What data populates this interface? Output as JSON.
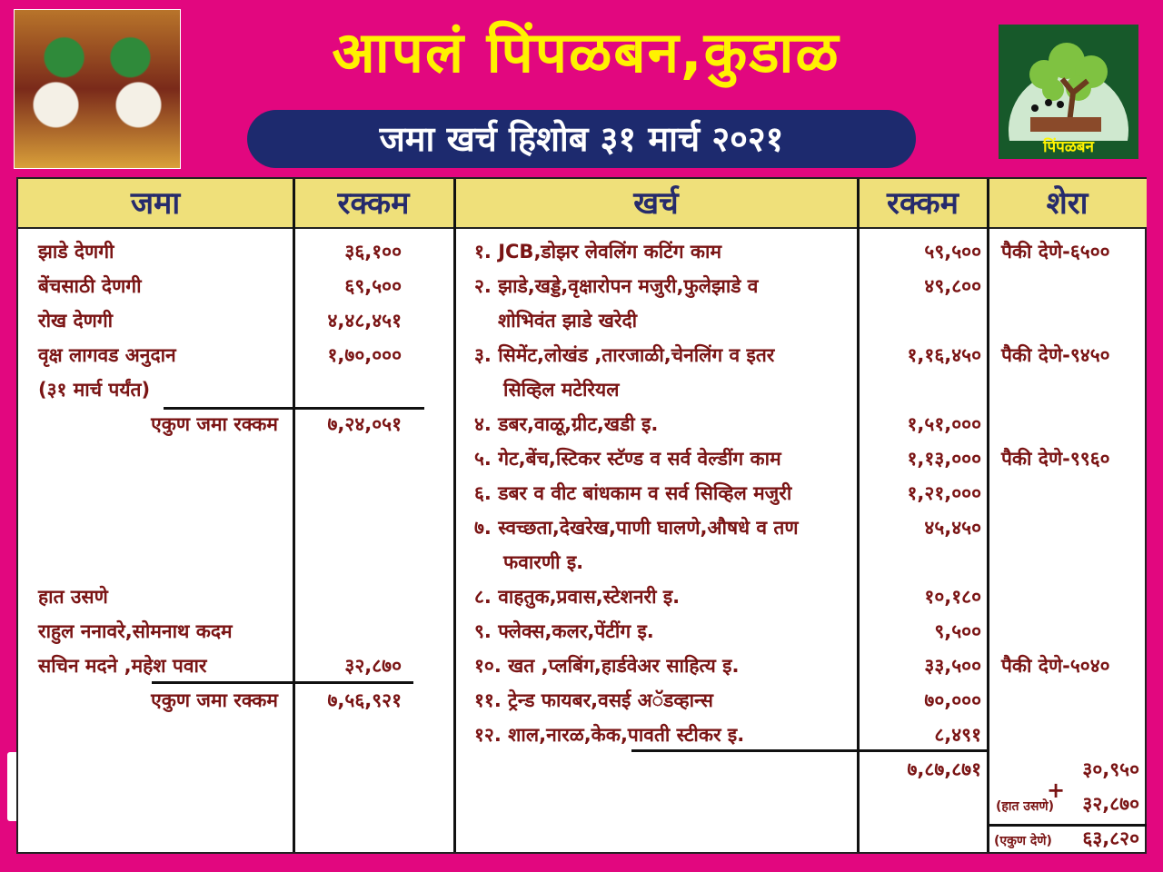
{
  "header": {
    "title": "आपलं पिंपळबन,कुडाळ",
    "subtitle": "जमा खर्च हिशोब ३१ मार्च २०२१",
    "logo_text": "आपलं.. पिंपळबन...कुडाळ"
  },
  "columns": {
    "income": "जमा",
    "income_amount": "रक्कम",
    "expense": "खर्च",
    "expense_amount": "रक्कम",
    "remarks": "शेरा"
  },
  "income": [
    {
      "label": "झाडे देणगी",
      "amount": "३६,१००"
    },
    {
      "label": "बेंचसाठी देणगी",
      "amount": "६९,५००"
    },
    {
      "label": "रोख देणगी",
      "amount": "४,४८,४५१"
    },
    {
      "label": "वृक्ष लागवड अनुदान",
      "amount": "१,७०,०००"
    },
    {
      "label": "(३१ मार्च पर्यंत)",
      "amount": ""
    }
  ],
  "income_total_1": {
    "label": "एकुण जमा रक्कम",
    "amount": "७,२४,०५१"
  },
  "loans": {
    "heading": "हात उसणे",
    "line1": "राहुल ननावरे,सोमनाथ कदम",
    "line2": "सचिन मदने ,महेश पवार",
    "amount": "३२,८७०"
  },
  "income_total_2": {
    "label": "एकुण जमा रक्कम",
    "amount": "७,५६,९२१"
  },
  "expenses": [
    {
      "label": "१. JCB,डोझर लेवलिंग कटिंग काम",
      "amount": "५९,५००",
      "remark": "पैकी देणे-६५००"
    },
    {
      "label": "२. झाडे,खड्डे,वृक्षारोपन मजुरी,फुलेझाडे व",
      "label2": "शोभिवंत झाडे खरेदी",
      "amount": "४९,८००",
      "remark": ""
    },
    {
      "label": "३. सिमेंट,लोखंड ,तारजाळी,चेनलिंग व इतर",
      "label2": "सिव्हिल मटेरियल",
      "amount": "१,१६,४५०",
      "remark": "पैकी देणे-९४५०"
    },
    {
      "label": "४. डबर,वाळू,ग्रीट,खडी इ.",
      "amount": "१,५१,०००",
      "remark": ""
    },
    {
      "label": "५. गेट,बेंच,स्टिकर स्टॅण्ड व सर्व वेल्डींग काम",
      "amount": "१,१३,०००",
      "remark": "पैकी देणे-९९६०"
    },
    {
      "label": "६. डबर व वीट बांधकाम व सर्व सिव्हिल मजुरी",
      "amount": "१,२१,०००",
      "remark": ""
    },
    {
      "label": "७. स्वच्छता,देखरेख,पाणी घालणे,औषधे व तण",
      "label2": "फवारणी इ.",
      "amount": "४५,४५०",
      "remark": ""
    },
    {
      "label": "८. वाहतुक,प्रवास,स्टेशनरी इ.",
      "amount": "१०,१८०",
      "remark": ""
    },
    {
      "label": "९. फ्लेक्स,कलर,पेंटींग इ.",
      "amount": "९,५००",
      "remark": ""
    },
    {
      "label": "१०. खत ,प्लबिंग,हार्डवेअर साहित्य इ.",
      "amount": "३३,५००",
      "remark": "पैकी देणे-५०४०"
    },
    {
      "label": "११. ट्रेन्ड फायबर,वसई अॅडव्हान्स",
      "amount": "७०,०००",
      "remark": ""
    },
    {
      "label": "१२. शाल,नारळ,केक,पावती स्टीकर इ.",
      "amount": "८,४९१",
      "remark": ""
    }
  ],
  "expense_total": "७,८७,८७१",
  "dues": {
    "pending": "३०,९५०",
    "plus": "+",
    "loan_label": "(हात उसणे)",
    "loan_amount": "३२,८७०",
    "total_label": "(एकुण देणे)",
    "total_amount": "६३,८२०"
  },
  "colors": {
    "background": "#e2077f",
    "title": "#fff200",
    "pill": "#1d2a6e",
    "header_row": "#efe07a",
    "text": "#7a1414"
  }
}
